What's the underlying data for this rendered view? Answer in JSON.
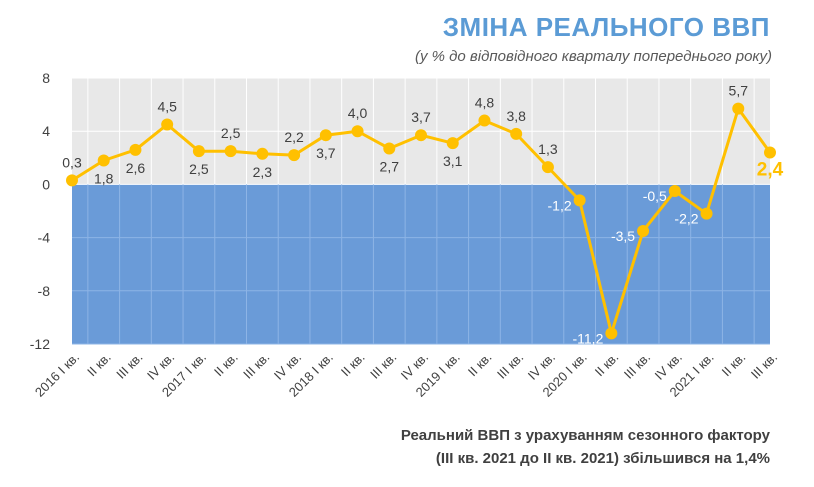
{
  "header": {
    "title": "ЗМІНА РЕАЛЬНОГО ВВП",
    "subtitle": "(у % до відповідного кварталу попереднього року)"
  },
  "footer": {
    "line1": "Реальний ВВП з урахуванням сезонного фактору",
    "line2": "(III кв. 2021 до II кв. 2021) збільшився на 1,4%"
  },
  "chart_data": {
    "type": "line",
    "categories": [
      "2016 I кв.",
      "II кв.",
      "III кв.",
      "IV кв.",
      "2017 I кв.",
      "II кв.",
      "III кв.",
      "IV кв.",
      "2018 I кв.",
      "II кв.",
      "III кв.",
      "IV кв.",
      "2019 I кв.",
      "II кв.",
      "III кв.",
      "IV кв.",
      "2020 I кв.",
      "II кв.",
      "III кв.",
      "IV кв.",
      "2021 I кв.",
      "II кв.",
      "III кв."
    ],
    "values": [
      0.3,
      1.8,
      2.6,
      4.5,
      2.5,
      2.5,
      2.3,
      2.2,
      3.7,
      4.0,
      2.7,
      3.7,
      3.1,
      4.8,
      3.8,
      1.3,
      -1.2,
      -11.2,
      -3.5,
      -0.5,
      -2.2,
      5.7,
      2.4
    ],
    "data_labels": [
      "0,3",
      "1,8",
      "2,6",
      "4,5",
      "2,5",
      "2,5",
      "2,3",
      "2,2",
      "3,7",
      "4,0",
      "2,7",
      "3,7",
      "3,1",
      "4,8",
      "3,8",
      "1,3",
      "-1,2",
      "-11,2",
      "-3,5",
      "-0,5",
      "-2,2",
      "5,7",
      "2,4"
    ],
    "label_position": [
      "above",
      "below",
      "below",
      "above",
      "below",
      "above",
      "below",
      "above",
      "below",
      "above",
      "below",
      "above",
      "below",
      "above",
      "above",
      "above",
      "left",
      "left",
      "left",
      "left",
      "left",
      "above",
      "below"
    ],
    "highlight_last": true,
    "y_ticks": [
      "8",
      "4",
      "0",
      "-4",
      "-8",
      "-12"
    ],
    "ylim": [
      -12,
      8
    ],
    "grid": true,
    "colors": {
      "line": "#ffc000",
      "positive_bg": "#e8e8e8",
      "negative_bg": "#6a9bd8",
      "highlight_label": "#ffc000",
      "title": "#5b9bd5"
    }
  }
}
